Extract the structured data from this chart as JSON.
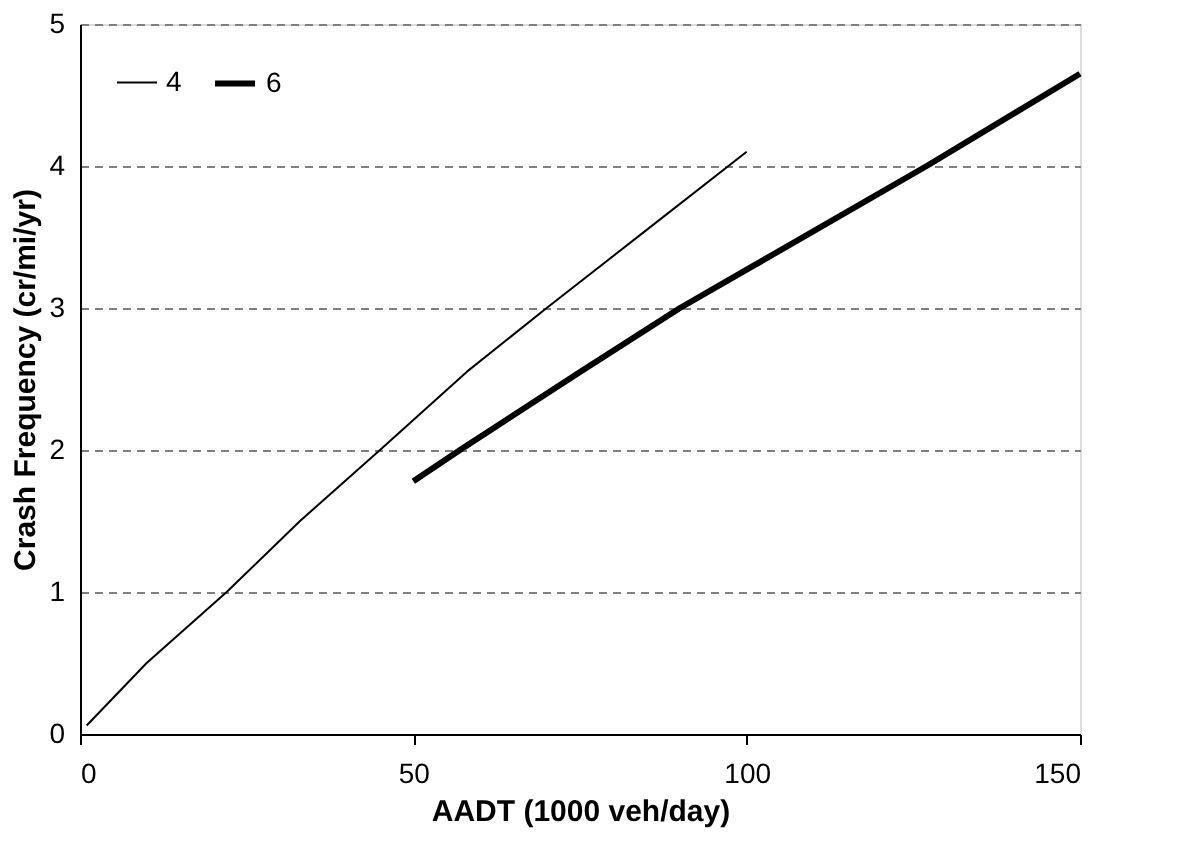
{
  "chart_data": {
    "type": "line",
    "xlabel": "AADT (1000 veh/day)",
    "ylabel": "Crash Frequency (cr/mi/yr)",
    "xlim": [
      0,
      150
    ],
    "xticks": [
      0,
      50,
      100,
      150
    ],
    "ylim": [
      0,
      5
    ],
    "yticks": [
      0,
      1,
      2,
      3,
      4,
      5
    ],
    "grid": "y",
    "legend": "top left",
    "line_style": "solid",
    "marker": "none",
    "series": [
      {
        "name": "4",
        "color": "#000000",
        "x": [
          1,
          10,
          22,
          33,
          45,
          58,
          70,
          85,
          100
        ],
        "values": [
          0.06,
          0.5,
          1.0,
          1.5,
          2.0,
          2.55,
          3.0,
          3.55,
          4.1
        ]
      },
      {
        "name": "6",
        "color": "#000000",
        "x": [
          50,
          57,
          75,
          90,
          100,
          127,
          150
        ],
        "values": [
          1.78,
          2.0,
          2.55,
          3.0,
          3.27,
          4.0,
          4.65
        ]
      }
    ]
  }
}
